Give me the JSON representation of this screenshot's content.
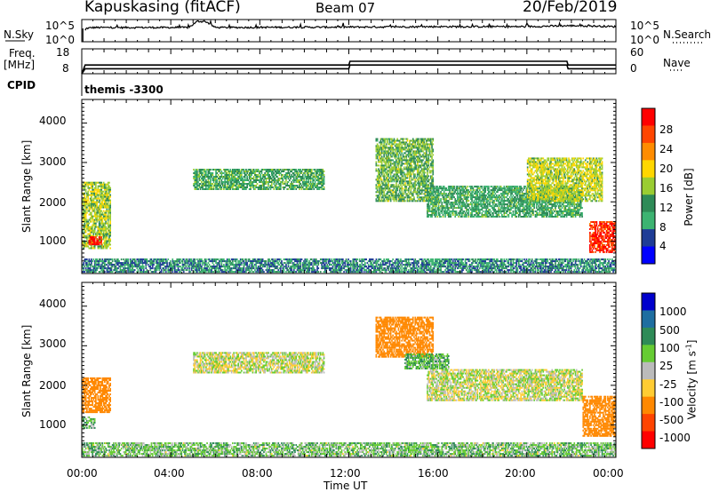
{
  "header": {
    "station": "Kapuskasing (fitACF)",
    "beam": "Beam 07",
    "date": "20/Feb/2019"
  },
  "noise_panel": {
    "left_label": "N.Sky",
    "right_label": "N.Search",
    "left_ticks": [
      "10^5",
      "10^0"
    ],
    "right_ticks": [
      "10^5",
      "10^0"
    ]
  },
  "freq_panel": {
    "left_label_top": "Freq.",
    "left_label_unit": "[MHz]",
    "right_label": "Nave",
    "left_ticks": [
      "18",
      "8"
    ],
    "right_ticks": [
      "60",
      "0"
    ]
  },
  "cpid_panel": {
    "label": "CPID",
    "value": "themis -3300"
  },
  "power_panel": {
    "ylabel": "Slant Range [km]",
    "yticks": [
      "4000",
      "3000",
      "2000",
      "1000"
    ],
    "colorbar_label": "Power [dB]",
    "colorbar_ticks": [
      "28",
      "24",
      "20",
      "16",
      "12",
      "8",
      "4"
    ],
    "colors": [
      "#ff0000",
      "#ff4500",
      "#ff8c00",
      "#ffd700",
      "#9acd32",
      "#2e8b57",
      "#3cb371",
      "#1e3c96",
      "#0000ff"
    ]
  },
  "velocity_panel": {
    "ylabel": "Slant Range [km]",
    "yticks": [
      "4000",
      "3000",
      "2000",
      "1000"
    ],
    "colorbar_label": "Velocity [m s",
    "colorbar_label_sup": "-1",
    "colorbar_label_end": "]",
    "colorbar_ticks": [
      "1000",
      "500",
      "100",
      "25",
      "-25",
      "-100",
      "-500",
      "-1000"
    ],
    "colors": [
      "#0000cc",
      "#1e6ea0",
      "#2e8b57",
      "#66cc33",
      "#bbbbbb",
      "#ffcc33",
      "#ff8800",
      "#ff4400",
      "#ff0000"
    ]
  },
  "xaxis": {
    "label": "Time UT",
    "ticks": [
      "00:00",
      "04:00",
      "08:00",
      "12:00",
      "16:00",
      "20:00",
      "00:00"
    ]
  },
  "chart_data": [
    {
      "type": "line",
      "title": "N.Sky / N.Search",
      "x": [
        0,
        0.2,
        0.5,
        4.8,
        5.2,
        5.6,
        6,
        12,
        16,
        20,
        21.8,
        22.5,
        24
      ],
      "series": [
        {
          "values": [
            1,
            3.0,
            3.2,
            3.2,
            4.6,
            4.5,
            3.2,
            3.3,
            3.4,
            3.4,
            3.6,
            3.6,
            3.4
          ]
        }
      ],
      "ylim": [
        0,
        5
      ],
      "yscale": "log10"
    },
    {
      "type": "line",
      "title": "Freq. / Nave",
      "x": [
        0,
        0.15,
        12,
        12.05,
        21.8,
        21.85,
        24
      ],
      "series": [
        {
          "values": [
            8,
            11.5,
            11.5,
            13,
            13,
            11.5,
            11.5
          ]
        },
        {
          "values": [
            8,
            10,
            10,
            11.5,
            11.5,
            10,
            10
          ]
        }
      ],
      "ylim": [
        8,
        18
      ]
    },
    {
      "type": "heatmap",
      "title": "Power [dB]",
      "xlabel": "Time UT",
      "ylabel": "Slant Range [km]",
      "xlim": [
        0,
        24
      ],
      "ylim": [
        180,
        4600
      ],
      "zlim": [
        0,
        30
      ],
      "regions": [
        {
          "t0": 0.0,
          "t1": 1.3,
          "r0": 800,
          "r1": 2500,
          "level": 14
        },
        {
          "t0": 0.3,
          "t1": 0.9,
          "r0": 900,
          "r1": 1100,
          "level": 28
        },
        {
          "t0": 0.0,
          "t1": 24.0,
          "r0": 200,
          "r1": 550,
          "level": 6
        },
        {
          "t0": 5.0,
          "t1": 10.9,
          "r0": 2300,
          "r1": 2800,
          "level": 10
        },
        {
          "t0": 13.2,
          "t1": 15.8,
          "r0": 2000,
          "r1": 3600,
          "level": 12
        },
        {
          "t0": 15.5,
          "t1": 22.5,
          "r0": 1600,
          "r1": 2400,
          "level": 9
        },
        {
          "t0": 20.0,
          "t1": 23.4,
          "r0": 2000,
          "r1": 3100,
          "level": 15
        },
        {
          "t0": 22.8,
          "t1": 24.0,
          "r0": 700,
          "r1": 1500,
          "level": 26
        }
      ]
    },
    {
      "type": "heatmap",
      "title": "Velocity [m s-1]",
      "xlabel": "Time UT",
      "ylabel": "Slant Range [km]",
      "xlim": [
        0,
        24
      ],
      "ylim": [
        180,
        4600
      ],
      "zlim": [
        -1000,
        1000
      ],
      "regions": [
        {
          "t0": 0.0,
          "t1": 1.3,
          "r0": 1300,
          "r1": 2200,
          "level": -300
        },
        {
          "t0": 0.0,
          "t1": 0.6,
          "r0": 900,
          "r1": 1200,
          "level": 80
        },
        {
          "t0": 0.0,
          "t1": 24.0,
          "r0": 200,
          "r1": 550,
          "level": 60
        },
        {
          "t0": 5.0,
          "t1": 10.9,
          "r0": 2300,
          "r1": 2800,
          "level": 0
        },
        {
          "t0": 13.2,
          "t1": 15.8,
          "r0": 2700,
          "r1": 3700,
          "level": -400
        },
        {
          "t0": 14.5,
          "t1": 16.5,
          "r0": 2400,
          "r1": 2800,
          "level": 90
        },
        {
          "t0": 15.5,
          "t1": 22.5,
          "r0": 1600,
          "r1": 2400,
          "level": 0
        },
        {
          "t0": 22.5,
          "t1": 24.0,
          "r0": 700,
          "r1": 1700,
          "level": -400
        }
      ]
    }
  ]
}
